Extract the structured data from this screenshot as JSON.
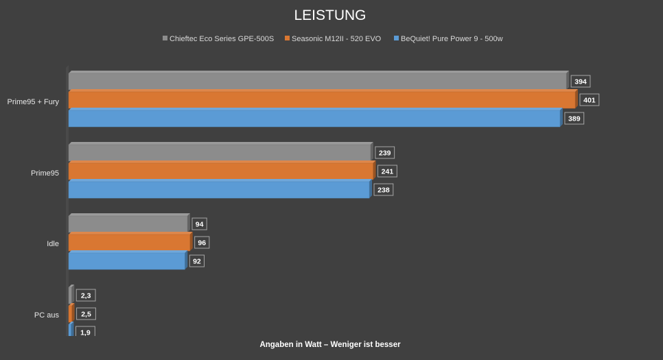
{
  "chart_data": {
    "type": "bar",
    "orientation": "horizontal",
    "title": "LEISTUNG",
    "xlabel": "Angaben in Watt – Weniger ist besser",
    "ylabel": "",
    "xlim": [
      0,
      401
    ],
    "categories": [
      "Prime95 + Fury",
      "Prime95",
      "Idle",
      "PC aus"
    ],
    "series": [
      {
        "name": "Chieftec Eco Series GPE-500S",
        "color": "#8c8c8c",
        "values": [
          394,
          239,
          94,
          2.3
        ],
        "labels": [
          "394",
          "239",
          "94",
          "2,3"
        ]
      },
      {
        "name": "Seasonic M12II - 520 EVO",
        "color": "#d97732",
        "values": [
          401,
          241,
          96,
          2.5
        ],
        "labels": [
          "401",
          "241",
          "96",
          "2,5"
        ]
      },
      {
        "name": "BeQuiet! Pure Power 9 - 500w",
        "color": "#5b9bd5",
        "values": [
          389,
          238,
          92,
          1.9
        ],
        "labels": [
          "389",
          "238",
          "92",
          "1,9"
        ]
      }
    ],
    "legend_position": "top-center",
    "grid": false
  }
}
